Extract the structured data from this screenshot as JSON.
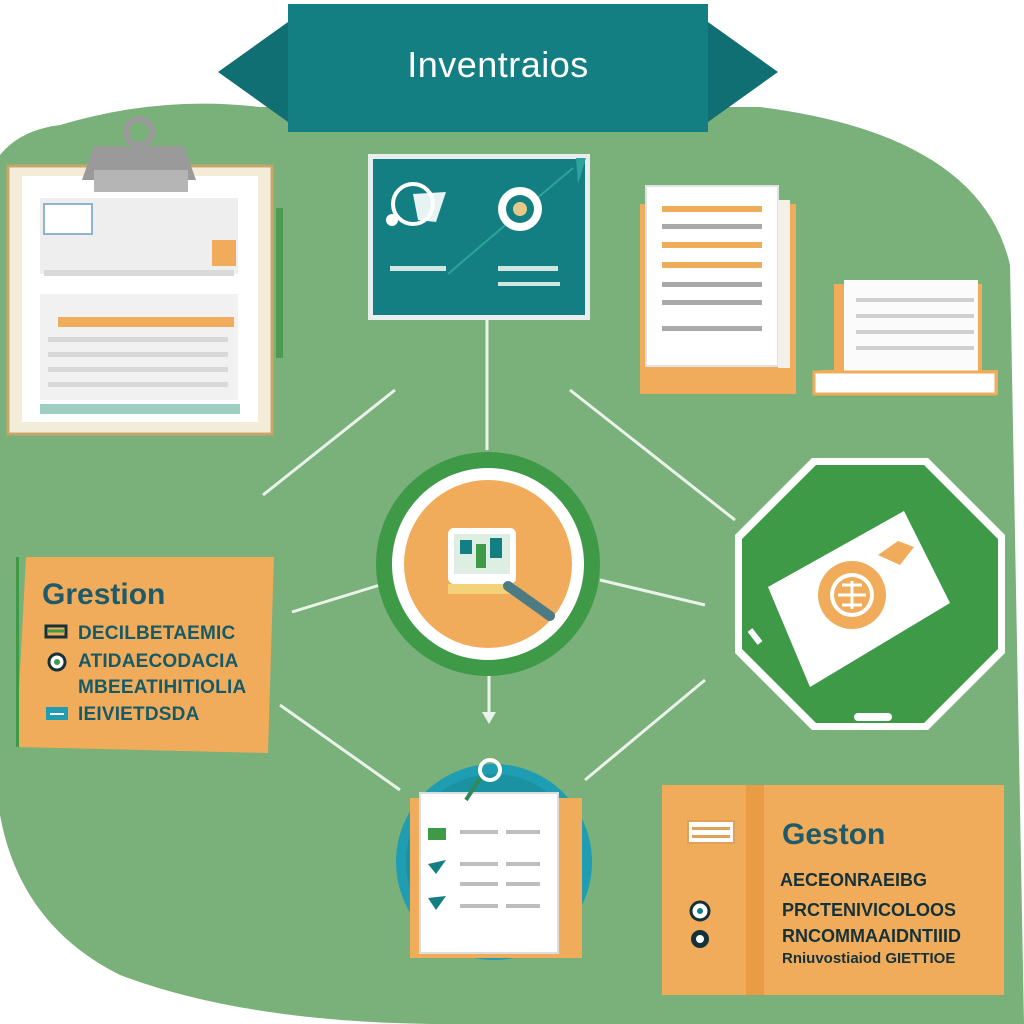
{
  "banner": {
    "title": "Inventraios"
  },
  "left_card": {
    "title": "Grestion",
    "lines": [
      "DECILBETAEMIC",
      "ATIDAECODACIA",
      "MBEEATIHITIOLIA",
      "IEIVIETDSDA"
    ]
  },
  "right_card": {
    "title": "Geston",
    "lines": [
      "AECEONRAEIBG",
      "PRCTENIVICOLOOS",
      "RNCOMMAAIDNTIIID",
      "Rniuvostiaiod GIETTIOE"
    ]
  },
  "colors": {
    "background_green": "#7ab07a",
    "banner_teal": "#137f82",
    "accent_orange": "#f0ac5a",
    "node_green": "#3f9a48",
    "text_teal": "#1e5a6a"
  },
  "icons": {
    "clipboard": "clipboard-icon",
    "monitor": "monitor-dashboard-icon",
    "documents": "document-stack-icon",
    "center_node": "magnifier-tablet-icon",
    "globe": "globe-document-icon",
    "checklist": "checklist-icon"
  }
}
